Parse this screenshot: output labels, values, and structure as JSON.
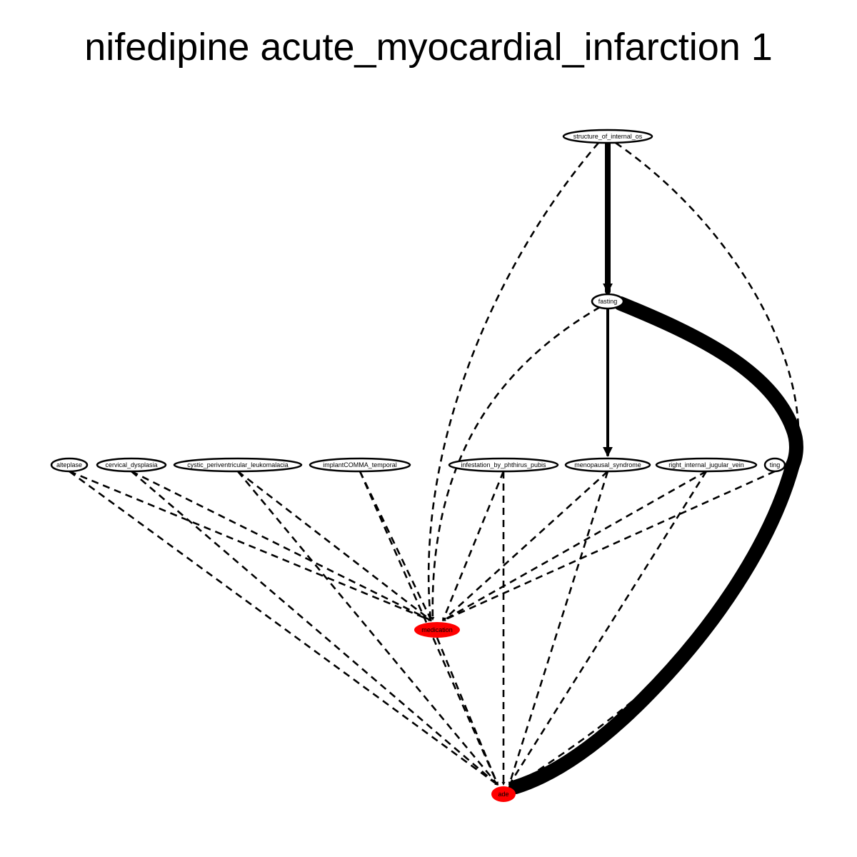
{
  "title": "nifedipine acute_myocardial_infarction 1",
  "colors": {
    "highlight_node": "#ff0000",
    "default_node": "#ffffff",
    "stroke": "#000000"
  },
  "nodes": {
    "structure_of_internal_os": {
      "label": "structure_of_internal_os",
      "highlight": false
    },
    "fasting": {
      "label": "fasting",
      "highlight": false
    },
    "alteplase": {
      "label": "alteplase",
      "highlight": false
    },
    "cervical_dysplasia": {
      "label": "cervical_dysplasia",
      "highlight": false
    },
    "cystic_periventricular_leukomalacia": {
      "label": "cystic_periventricular_leukomalacia",
      "highlight": false
    },
    "implantCOMMA_temporal": {
      "label": "implantCOMMA_temporal",
      "highlight": false
    },
    "infestation_by_phthirus_pubis": {
      "label": "infestation_by_phthirus_pubis",
      "highlight": false
    },
    "menopausal_syndrome": {
      "label": "menopausal_syndrome",
      "highlight": false
    },
    "right_internal_jugular_vein": {
      "label": "right_internal_jugular_vein",
      "highlight": false
    },
    "ting": {
      "label": "ting",
      "highlight": false
    },
    "medication": {
      "label": "medication",
      "highlight": true
    },
    "ade": {
      "label": "ade",
      "highlight": true
    }
  },
  "edges": [
    {
      "from": "structure_of_internal_os",
      "to": "fasting",
      "style": "solid",
      "weight": 3
    },
    {
      "from": "fasting",
      "to": "ting",
      "style": "solid",
      "weight": 5
    },
    {
      "from": "fasting",
      "to": "menopausal_syndrome",
      "style": "solid",
      "weight": 2
    },
    {
      "from": "structure_of_internal_os",
      "to": "medication",
      "style": "dashed"
    },
    {
      "from": "structure_of_internal_os",
      "to": "ade",
      "style": "dashed"
    },
    {
      "from": "fasting",
      "to": "medication",
      "style": "dashed"
    },
    {
      "from": "alteplase",
      "to": "medication",
      "style": "dashed"
    },
    {
      "from": "alteplase",
      "to": "ade",
      "style": "dashed"
    },
    {
      "from": "cervical_dysplasia",
      "to": "medication",
      "style": "dashed"
    },
    {
      "from": "cervical_dysplasia",
      "to": "ade",
      "style": "dashed"
    },
    {
      "from": "cystic_periventricular_leukomalacia",
      "to": "medication",
      "style": "dashed"
    },
    {
      "from": "cystic_periventricular_leukomalacia",
      "to": "ade",
      "style": "dashed"
    },
    {
      "from": "implantCOMMA_temporal",
      "to": "medication",
      "style": "dashed"
    },
    {
      "from": "implantCOMMA_temporal",
      "to": "ade",
      "style": "dashed"
    },
    {
      "from": "infestation_by_phthirus_pubis",
      "to": "medication",
      "style": "dashed"
    },
    {
      "from": "infestation_by_phthirus_pubis",
      "to": "ade",
      "style": "dashed"
    },
    {
      "from": "menopausal_syndrome",
      "to": "medication",
      "style": "dashed"
    },
    {
      "from": "menopausal_syndrome",
      "to": "ade",
      "style": "dashed"
    },
    {
      "from": "right_internal_jugular_vein",
      "to": "medication",
      "style": "dashed"
    },
    {
      "from": "right_internal_jugular_vein",
      "to": "ade",
      "style": "dashed"
    },
    {
      "from": "ting",
      "to": "medication",
      "style": "dashed"
    },
    {
      "from": "ting",
      "to": "ade",
      "style": "solid",
      "weight": 5
    },
    {
      "from": "medication",
      "to": "ade",
      "style": "dashed"
    }
  ]
}
